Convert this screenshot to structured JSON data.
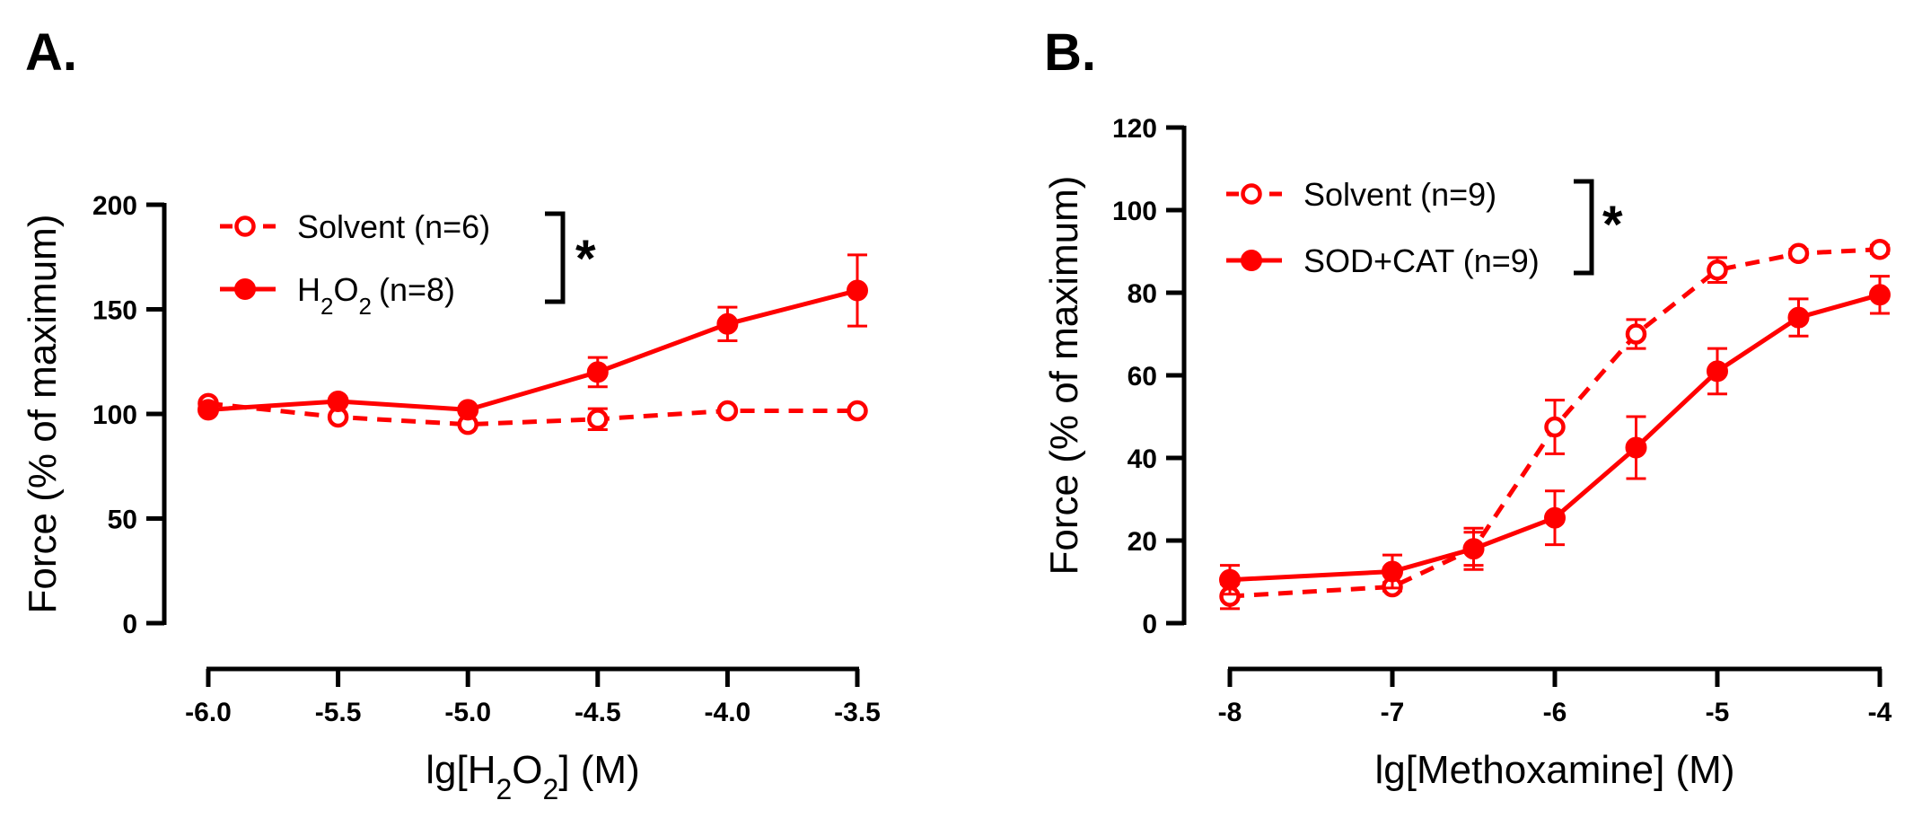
{
  "chart_data": [
    {
      "panel": "A.",
      "type": "line",
      "xlabel": "lg[H2O2] (M)",
      "ylabel": "Force (% of maximum)",
      "xlim": [
        -6.0,
        -3.5
      ],
      "ylim": [
        0,
        200
      ],
      "xticks": [
        "-6.0",
        "-5.5",
        "-5.0",
        "-4.5",
        "-4.0",
        "-3.5"
      ],
      "yticks": [
        "0",
        "50",
        "100",
        "150",
        "200"
      ],
      "significance": "*",
      "legend_position": "top-left",
      "series": [
        {
          "name": "Solvent (n=6)",
          "marker": "open-circle",
          "line": "dashed",
          "color": "#ff0000",
          "x": [
            -6.0,
            -5.5,
            -5.0,
            -4.5,
            -4.0,
            -3.5
          ],
          "values": [
            105,
            98.5,
            95,
            97.5,
            101.5,
            101.5
          ],
          "errors": [
            0,
            0,
            0,
            5,
            0,
            0
          ]
        },
        {
          "name": "H2O2 (n=8)",
          "legend_parts": [
            "H",
            "2",
            "O",
            "2",
            "(n=8)"
          ],
          "marker": "filled-circle",
          "line": "solid",
          "color": "#ff0000",
          "x": [
            -6.0,
            -5.5,
            -5.0,
            -4.5,
            -4.0,
            -3.5
          ],
          "values": [
            102,
            106,
            102,
            120,
            143,
            159
          ],
          "errors": [
            0,
            0,
            0,
            7,
            8,
            17
          ]
        }
      ]
    },
    {
      "panel": "B.",
      "type": "line",
      "xlabel": "lg[Methoxamine] (M)",
      "ylabel": "Force (% of maximum)",
      "xlim": [
        -8,
        -4
      ],
      "ylim": [
        0,
        120
      ],
      "xticks": [
        "-8",
        "-7",
        "-6",
        "-5",
        "-4"
      ],
      "yticks": [
        "0",
        "20",
        "40",
        "60",
        "80",
        "100",
        "120"
      ],
      "significance": "*",
      "legend_position": "top-left",
      "series": [
        {
          "name": "Solvent (n=9)",
          "marker": "open-circle",
          "line": "dashed",
          "color": "#ff0000",
          "x": [
            -8,
            -7,
            -6.5,
            -6,
            -5.5,
            -5,
            -4.5,
            -4
          ],
          "values": [
            6.5,
            8.8,
            18,
            47.5,
            70,
            85.5,
            89.5,
            90.5
          ],
          "errors": [
            3,
            1,
            4,
            6.5,
            3.5,
            3,
            1,
            1
          ]
        },
        {
          "name": "SOD+CAT (n=9)",
          "marker": "filled-circle",
          "line": "solid",
          "color": "#ff0000",
          "x": [
            -8,
            -7,
            -6.5,
            -6,
            -5.5,
            -5,
            -4.5,
            -4
          ],
          "values": [
            10.5,
            12.5,
            18,
            25.5,
            42.5,
            61,
            74,
            79.5
          ],
          "errors": [
            3.5,
            4,
            5,
            6.5,
            7.5,
            5.5,
            4.5,
            4.5
          ]
        }
      ]
    }
  ]
}
